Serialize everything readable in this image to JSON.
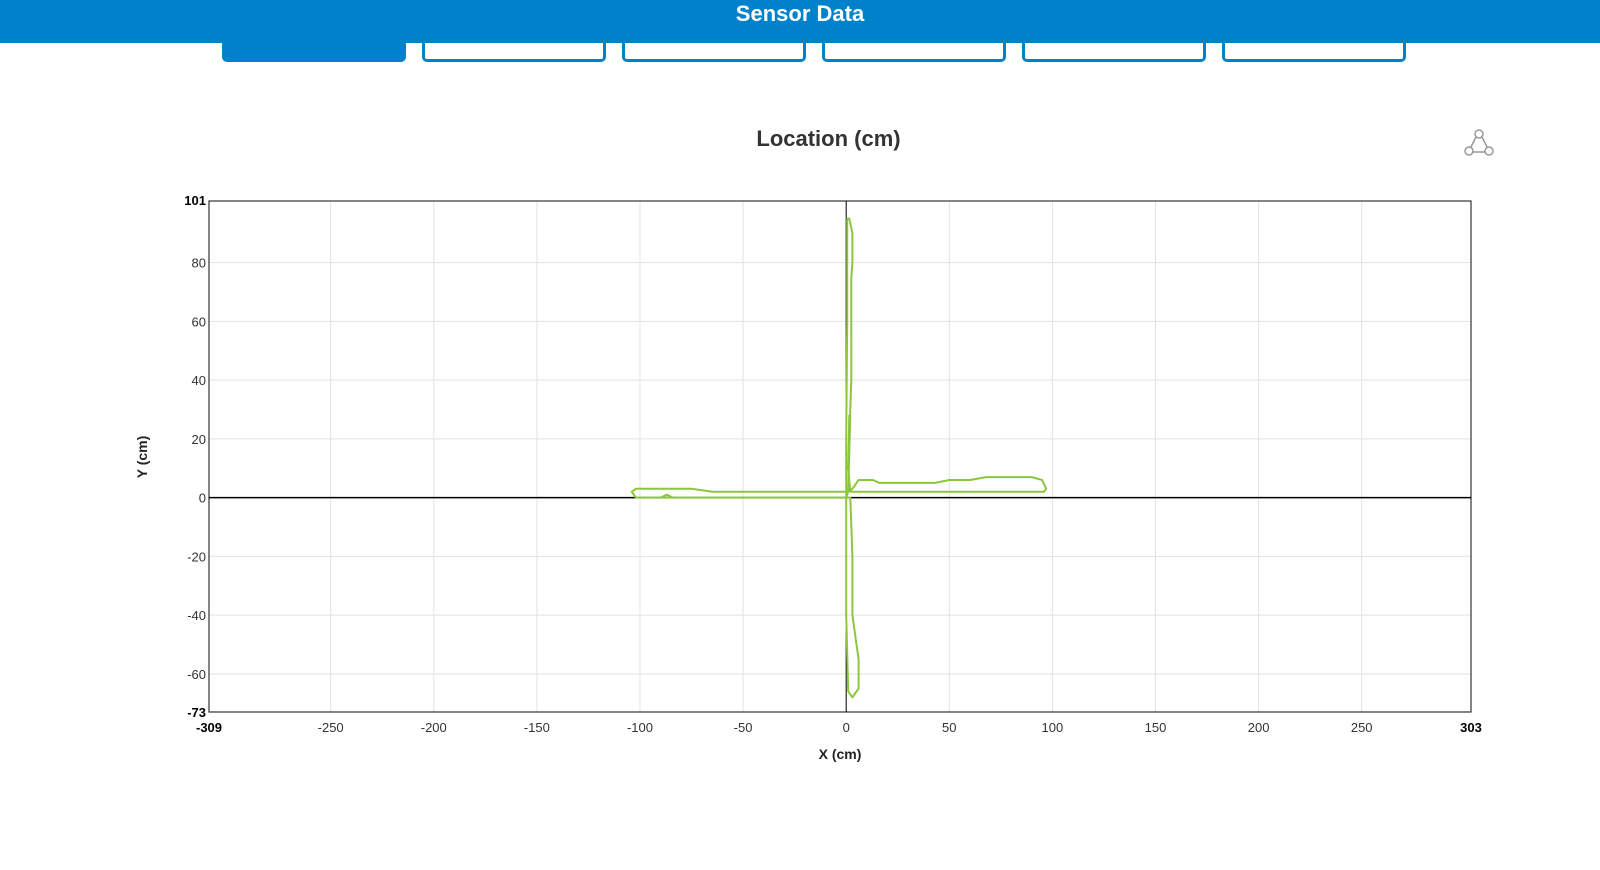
{
  "header": {
    "title": "Sensor Data"
  },
  "tabs": [
    {
      "label": "",
      "active": true
    },
    {
      "label": "",
      "active": false
    },
    {
      "label": "",
      "active": false
    },
    {
      "label": "",
      "active": false
    },
    {
      "label": "",
      "active": false
    },
    {
      "label": "",
      "active": false
    }
  ],
  "share_icon": "share-icon",
  "colors": {
    "accent": "#0082cb",
    "series": "#8cc63f",
    "grid": "#e2e2e2"
  },
  "chart_data": {
    "type": "line",
    "title": "Location (cm)",
    "xlabel": "X (cm)",
    "ylabel": "Y (cm)",
    "xlim": [
      -309,
      303
    ],
    "ylim": [
      -73,
      101
    ],
    "x_ticks": [
      -250,
      -200,
      -150,
      -100,
      -50,
      0,
      50,
      100,
      150,
      200,
      250
    ],
    "y_ticks": [
      -60,
      -40,
      -20,
      0,
      20,
      40,
      60,
      80
    ],
    "x_min_label": "-309",
    "x_max_label": "303",
    "y_min_label": "-73",
    "y_max_label": "101",
    "grid": true,
    "series": [
      {
        "points": [
          [
            0,
            0
          ],
          [
            0,
            20
          ],
          [
            0.5,
            60
          ],
          [
            0.5,
            95
          ],
          [
            1.5,
            95
          ],
          [
            3,
            90
          ],
          [
            3,
            80
          ],
          [
            2.5,
            75
          ],
          [
            2.5,
            40
          ],
          [
            1.5,
            20
          ],
          [
            1,
            2
          ],
          [
            -60,
            2
          ],
          [
            -65,
            2
          ],
          [
            -75,
            3
          ],
          [
            -102,
            3
          ],
          [
            -104,
            2
          ],
          [
            -102,
            0
          ],
          [
            0,
            0
          ],
          [
            2,
            0
          ],
          [
            3,
            -20
          ],
          [
            3,
            -40
          ],
          [
            5,
            -50
          ],
          [
            6,
            -55
          ],
          [
            6,
            -65
          ],
          [
            4,
            -67
          ],
          [
            3,
            -68
          ],
          [
            1,
            -66
          ],
          [
            0,
            -40
          ],
          [
            0,
            -20
          ],
          [
            0,
            0
          ],
          [
            1,
            2
          ],
          [
            3,
            3
          ],
          [
            6,
            6
          ],
          [
            13,
            6
          ],
          [
            16,
            5
          ],
          [
            43,
            5
          ],
          [
            50,
            6
          ],
          [
            60,
            6
          ],
          [
            68,
            7
          ],
          [
            90,
            7
          ],
          [
            95,
            6
          ],
          [
            97,
            3
          ],
          [
            96,
            2
          ],
          [
            2,
            2
          ],
          [
            1,
            10
          ],
          [
            1.5,
            28
          ],
          [
            2,
            28
          ],
          [
            1,
            2
          ],
          [
            0,
            0
          ]
        ]
      },
      {
        "points": [
          [
            -90,
            0
          ],
          [
            -87,
            1
          ],
          [
            -84,
            0
          ]
        ]
      }
    ]
  }
}
